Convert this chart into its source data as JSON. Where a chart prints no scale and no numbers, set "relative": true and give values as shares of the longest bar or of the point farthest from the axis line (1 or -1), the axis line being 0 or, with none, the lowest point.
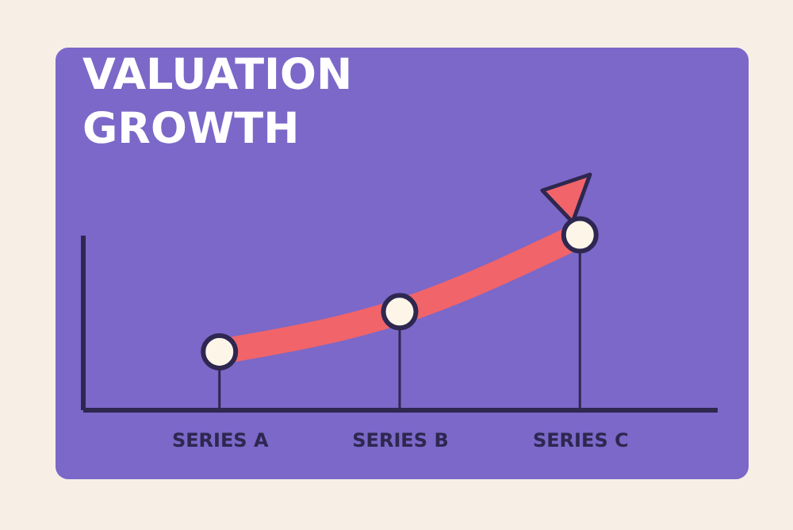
{
  "chart_data": {
    "type": "lollipop",
    "title": "VALUATION GROWTH",
    "relative": true,
    "categories": [
      "SERIES A",
      "SERIES B",
      "SERIES C"
    ],
    "series": [
      {
        "type": "line",
        "color": "#f0646a",
        "values": [
          0.33,
          0.56,
          1
        ]
      },
      {
        "color": "#2e2750",
        "marker": "circle",
        "values": [
          0.33,
          0.56,
          1
        ]
      }
    ]
  }
}
